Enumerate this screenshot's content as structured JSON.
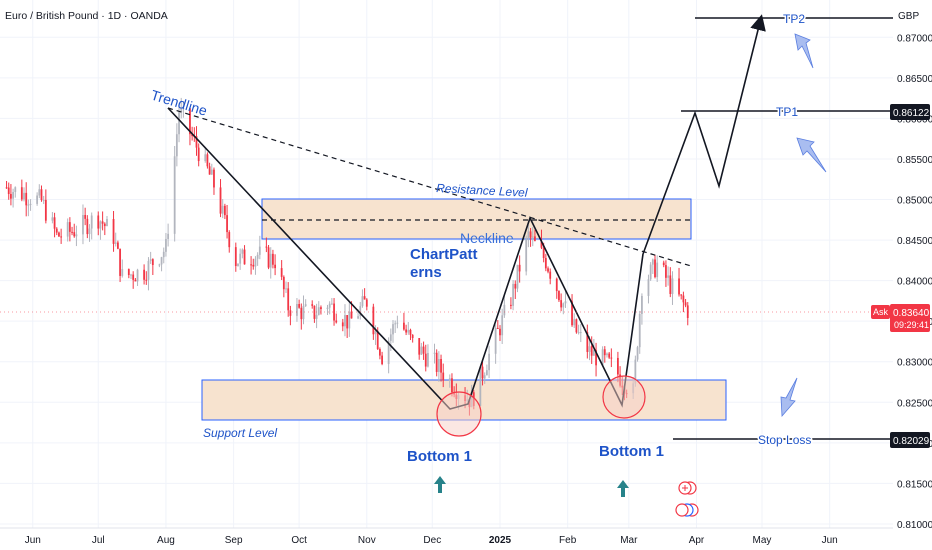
{
  "header": {
    "symbol_title": "Euro / British Pound · 1D · OANDA"
  },
  "colors": {
    "up": "#b2b5be",
    "down": "#f23645",
    "drawing": "#2962ff",
    "zone_fill": "#f7e3cf",
    "axis_text": "#131722",
    "grid": "#f0f3fa"
  },
  "price_axis": {
    "currency": "GBP",
    "ticks": [
      "0.87000",
      "0.86500",
      "0.86000",
      "0.85500",
      "0.85000",
      "0.84500",
      "0.84000",
      "0.83500",
      "0.83000",
      "0.82500",
      "0.82000",
      "0.81500",
      "0.81000"
    ],
    "badges": {
      "tp1_price": "0.86122",
      "ask_label": "Ask",
      "ask_price": "0.83640",
      "countdown": "09:29:41",
      "stop_price": "0.82029"
    }
  },
  "time_axis": {
    "labels": [
      "Jun",
      "Jul",
      "Aug",
      "Sep",
      "Oct",
      "Nov",
      "Dec",
      "2025",
      "Feb",
      "Mar",
      "Apr",
      "May",
      "Jun"
    ]
  },
  "annotations": {
    "trendline": "Trendline",
    "resistance": "Resistance Level",
    "neckline": "Neckline",
    "pattern_line1": "ChartPatt",
    "pattern_line2": "erns",
    "support": "Support Level",
    "bottom_left": "Bottom 1",
    "bottom_right": "Bottom 1",
    "tp1": "TP1",
    "tp2": "TP2",
    "stop_loss": "Stop Loss"
  },
  "chart_data": {
    "type": "candlestick",
    "title": "Euro / British Pound · 1D · OANDA",
    "y_range": [
      0.8095,
      0.8746
    ],
    "x_range": [
      "2024-05-17",
      "2025-06-30"
    ],
    "series_close_path": [
      [
        "2024-05-20",
        0.8515
      ],
      [
        "2024-06-05",
        0.8498
      ],
      [
        "2024-06-12",
        0.8455
      ],
      [
        "2024-06-20",
        0.8462
      ],
      [
        "2024-07-01",
        0.8478
      ],
      [
        "2024-07-08",
        0.8455
      ],
      [
        "2024-07-12",
        0.8405
      ],
      [
        "2024-07-22",
        0.8412
      ],
      [
        "2024-08-01",
        0.844
      ],
      [
        "2024-08-07",
        0.861
      ],
      [
        "2024-08-16",
        0.856
      ],
      [
        "2024-08-23",
        0.8518
      ],
      [
        "2024-09-02",
        0.8425
      ],
      [
        "2024-09-12",
        0.8432
      ],
      [
        "2024-09-20",
        0.8425
      ],
      [
        "2024-09-26",
        0.8368
      ],
      [
        "2024-10-07",
        0.8358
      ],
      [
        "2024-10-14",
        0.8372
      ],
      [
        "2024-10-24",
        0.8348
      ],
      [
        "2024-11-01",
        0.8375
      ],
      [
        "2024-11-08",
        0.8308
      ],
      [
        "2024-11-15",
        0.8355
      ],
      [
        "2024-11-22",
        0.8322
      ],
      [
        "2024-12-02",
        0.8298
      ],
      [
        "2024-12-12",
        0.8268
      ],
      [
        "2024-12-19",
        0.8252
      ],
      [
        "2024-12-27",
        0.8308
      ],
      [
        "2025-01-06",
        0.8378
      ],
      [
        "2025-01-14",
        0.8455
      ],
      [
        "2025-01-22",
        0.8425
      ],
      [
        "2025-02-03",
        0.8345
      ],
      [
        "2025-02-11",
        0.8312
      ],
      [
        "2025-02-21",
        0.8295
      ],
      [
        "2025-03-03",
        0.8262
      ],
      [
        "2025-03-07",
        0.8395
      ],
      [
        "2025-03-14",
        0.842
      ],
      [
        "2025-03-24",
        0.8378
      ],
      [
        "2025-03-28",
        0.8364
      ]
    ],
    "last_price": 0.8364,
    "levels": {
      "resistance_zone": [
        0.8457,
        0.8504
      ],
      "support_zone": [
        0.8231,
        0.8281
      ],
      "tp1": 0.86122,
      "tp2": 0.8725,
      "stop_loss": 0.82029
    },
    "projection_path": [
      [
        "2025-03-07",
        0.83
      ],
      [
        "2025-04-01",
        0.861
      ],
      [
        "2025-04-17",
        0.852
      ],
      [
        "2025-05-01",
        0.872
      ]
    ]
  }
}
